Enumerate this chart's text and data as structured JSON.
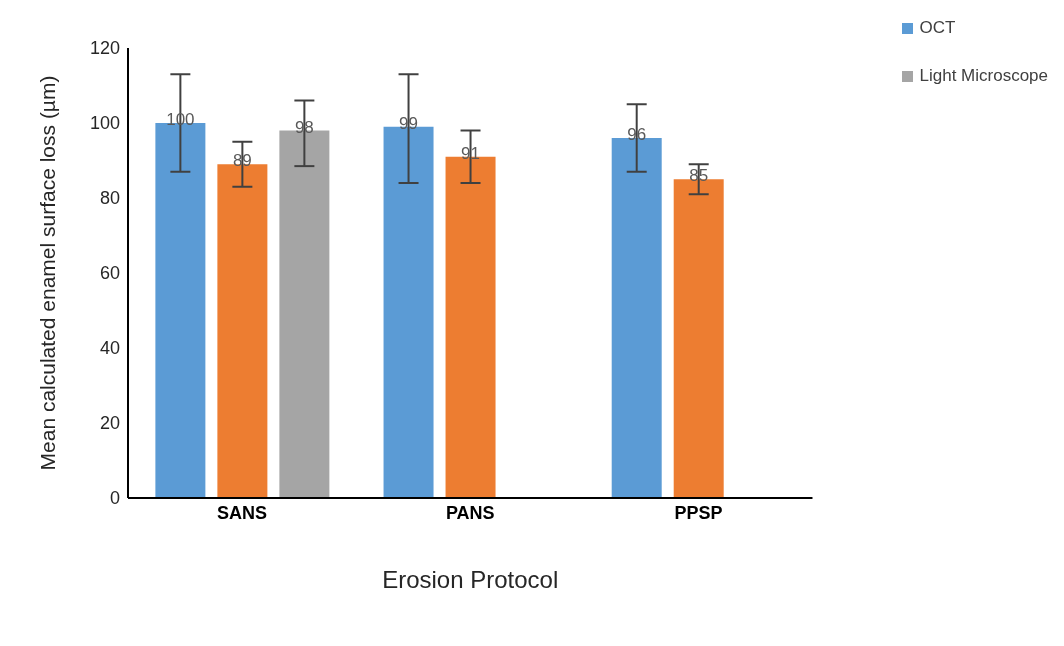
{
  "chart_data": {
    "type": "bar",
    "xlabel": "Erosion Protocol",
    "ylabel": "Mean calculated enamel  surface loss (µm)",
    "categories": [
      "SANS",
      "PANS",
      "PPSP"
    ],
    "series": [
      {
        "name": "OCT",
        "color": "#5b9bd5",
        "values": [
          100,
          99,
          96
        ],
        "errors": [
          [
            87,
            113
          ],
          [
            84,
            113
          ],
          [
            87,
            105
          ]
        ]
      },
      {
        "color": "#ed7d31",
        "values": [
          89,
          91,
          85
        ],
        "errors": [
          [
            83,
            95
          ],
          [
            84,
            98
          ],
          [
            81,
            89
          ]
        ]
      },
      {
        "name": "Light Microscope",
        "color": "#a5a5a5",
        "values": [
          98,
          null,
          null
        ],
        "errors": [
          [
            88.5,
            106
          ],
          null,
          null
        ]
      }
    ],
    "ylim": [
      0,
      120
    ],
    "yticks": [
      0,
      20,
      40,
      60,
      80,
      100,
      120
    ],
    "grid": false,
    "legend": "top right",
    "data_labels": true
  }
}
